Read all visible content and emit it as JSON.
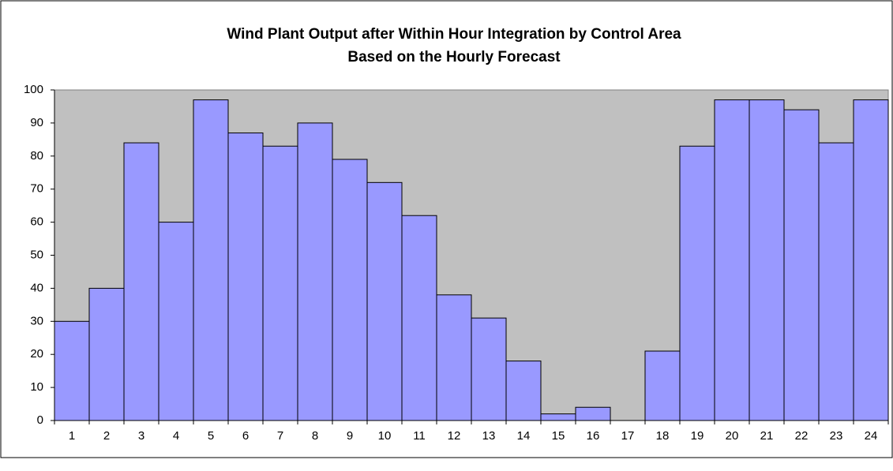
{
  "chart_data": {
    "type": "bar",
    "title": [
      "Wind Plant Output after Within Hour Integration by Control Area",
      "Based on the Hourly Forecast"
    ],
    "categories": [
      "1",
      "2",
      "3",
      "4",
      "5",
      "6",
      "7",
      "8",
      "9",
      "10",
      "11",
      "12",
      "13",
      "14",
      "15",
      "16",
      "17",
      "18",
      "19",
      "20",
      "21",
      "22",
      "23",
      "24"
    ],
    "values": [
      30,
      40,
      84,
      60,
      97,
      87,
      83,
      90,
      79,
      72,
      62,
      38,
      31,
      18,
      2,
      4,
      0,
      21,
      83,
      97,
      97,
      94,
      84,
      97
    ],
    "color": "#9999ff",
    "plot_background": "#c0c0c0",
    "ylim": [
      0,
      100
    ],
    "yticks": [
      0,
      10,
      20,
      30,
      40,
      50,
      60,
      70,
      80,
      90,
      100
    ],
    "grid": false
  }
}
